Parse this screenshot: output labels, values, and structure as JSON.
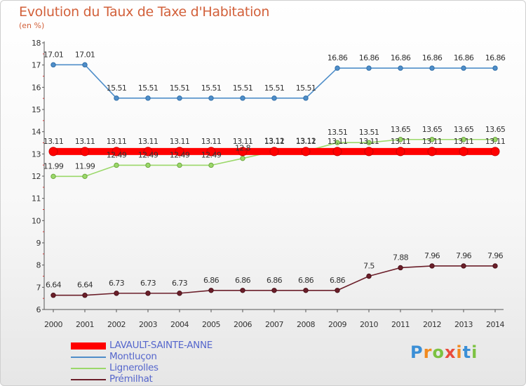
{
  "chart_data": {
    "type": "line",
    "title": "Evolution du Taux de Taxe d'Habitation",
    "ylabel": "(en %)",
    "xlabel": "",
    "categories": [
      "2000",
      "2001",
      "2002",
      "2003",
      "2004",
      "2005",
      "2006",
      "2007",
      "2008",
      "2009",
      "2010",
      "2011",
      "2012",
      "2013",
      "2014"
    ],
    "ylim": [
      6,
      18
    ],
    "yticks": [
      6,
      7,
      8,
      9,
      10,
      11,
      12,
      13,
      14,
      15,
      16,
      17,
      18
    ],
    "grid": false,
    "legend_position": "bottom-left",
    "series": [
      {
        "name": "LAVAULT-SAINTE-ANNE",
        "color": "#ff0000",
        "values": [
          13.11,
          13.11,
          13.11,
          13.11,
          13.11,
          13.11,
          13.11,
          13.11,
          13.11,
          13.11,
          13.11,
          13.11,
          13.11,
          13.11,
          13.11
        ],
        "labels": [
          "13.11",
          "13.11",
          "13.11",
          "13.11",
          "13.11",
          "13.11",
          "13.11",
          "13.11",
          "13.11",
          "13.11",
          "13.11",
          "13.11",
          "13.11",
          "13.11",
          "13.11"
        ]
      },
      {
        "name": "Montluçon",
        "color": "#4f8ec9",
        "values": [
          17.01,
          17.01,
          15.51,
          15.51,
          15.51,
          15.51,
          15.51,
          15.51,
          15.51,
          16.86,
          16.86,
          16.86,
          16.86,
          16.86,
          16.86
        ],
        "labels": [
          "17.01",
          "17.01",
          "15.51",
          "15.51",
          "15.51",
          "15.51",
          "15.51",
          "15.51",
          "15.51",
          "16.86",
          "16.86",
          "16.86",
          "16.86",
          "16.86",
          "16.86"
        ]
      },
      {
        "name": "Lignerolles",
        "color": "#9bd86a",
        "values": [
          11.99,
          11.99,
          12.49,
          12.49,
          12.49,
          12.49,
          12.8,
          13.12,
          13.12,
          13.51,
          13.51,
          13.65,
          13.65,
          13.65,
          13.65
        ],
        "labels": [
          "11.99",
          "11.99",
          "12.49",
          "12.49",
          "12.49",
          "12.49",
          "12.8",
          "13.12",
          "13.12",
          "13.51",
          "13.51",
          "13.65",
          "13.65",
          "13.65",
          "13.65"
        ]
      },
      {
        "name": "Prémilhat",
        "color": "#6b1f2a",
        "values": [
          6.64,
          6.64,
          6.73,
          6.73,
          6.73,
          6.86,
          6.86,
          6.86,
          6.86,
          6.86,
          7.5,
          7.88,
          7.96,
          7.96,
          7.96
        ],
        "labels": [
          "6.64",
          "6.64",
          "6.73",
          "6.73",
          "6.73",
          "6.86",
          "6.86",
          "6.86",
          "6.86",
          "6.86",
          "7.5",
          "7.88",
          "7.96",
          "7.96",
          "7.96"
        ]
      }
    ]
  },
  "logo": {
    "text": "Proxiti",
    "colors": [
      "#3b8fd6",
      "#f18a1f",
      "#7cc242",
      "#e94b3c",
      "#f18a1f",
      "#3b8fd6",
      "#7cc242"
    ]
  }
}
